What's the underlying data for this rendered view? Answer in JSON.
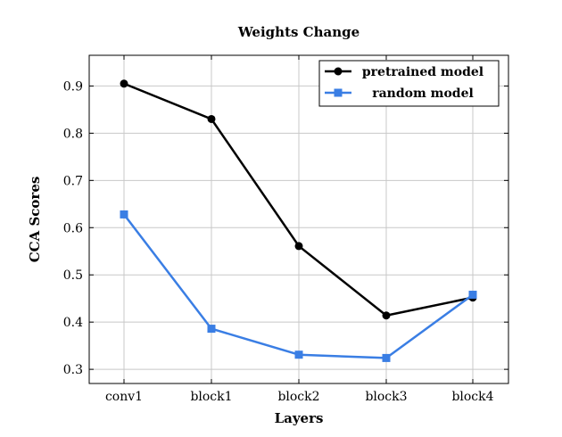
{
  "chart_data": {
    "type": "line",
    "title": "Weights Change",
    "xlabel": "Layers",
    "ylabel": "CCA Scores",
    "categories": [
      "conv1",
      "block1",
      "block2",
      "block3",
      "block4"
    ],
    "ylim": [
      0.27,
      0.965
    ],
    "yticks": [
      0.3,
      0.4,
      0.5,
      0.6,
      0.7,
      0.8,
      0.9
    ],
    "ytick_labels": [
      "0.3",
      "0.4",
      "0.5",
      "0.6",
      "0.7",
      "0.8",
      "0.9"
    ],
    "grid": true,
    "legend_position": "top-right",
    "series": [
      {
        "name": "pretrained model",
        "values": [
          0.905,
          0.83,
          0.561,
          0.414,
          0.452
        ],
        "color": "#000000",
        "marker": "circle"
      },
      {
        "name": "random model",
        "values": [
          0.628,
          0.386,
          0.331,
          0.324,
          0.458
        ],
        "color": "#3a7ee4",
        "marker": "square"
      }
    ]
  }
}
